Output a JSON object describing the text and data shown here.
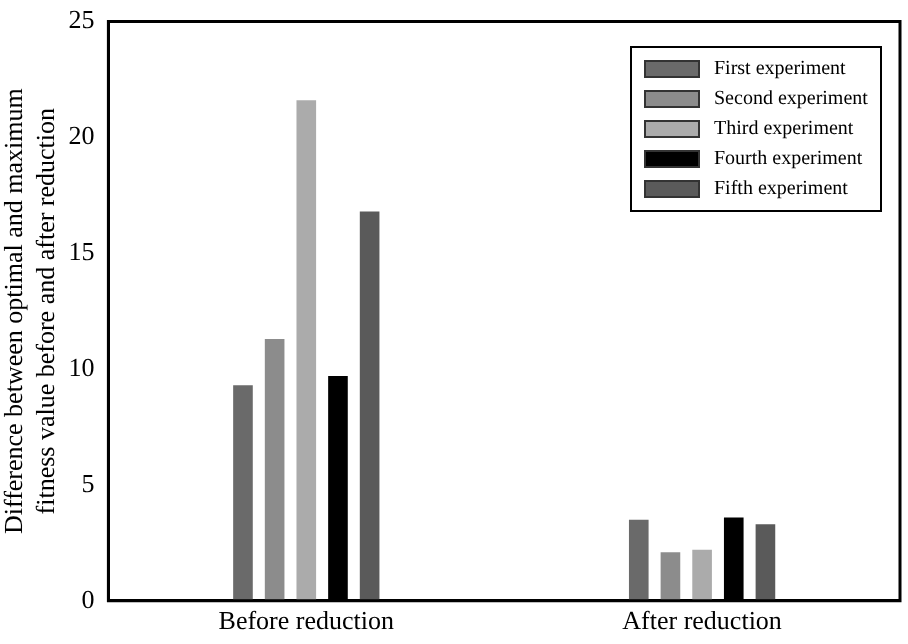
{
  "chart_data": {
    "type": "bar",
    "ylabel": "Difference between optimal and maximum\nfitness value before and after reduction",
    "categories": [
      "Before reduction",
      "After reduction"
    ],
    "series": [
      {
        "name": "First experiment",
        "color": "#6a6a6a",
        "values": [
          9.3,
          3.5
        ]
      },
      {
        "name": "Second experiment",
        "color": "#8c8c8c",
        "values": [
          11.3,
          2.1
        ]
      },
      {
        "name": "Third experiment",
        "color": "#ababab",
        "values": [
          21.6,
          2.2
        ]
      },
      {
        "name": "Fourth experiment",
        "color": "#000000",
        "values": [
          9.7,
          3.6
        ]
      },
      {
        "name": "Fifth experiment",
        "color": "#5a5a5a",
        "values": [
          16.8,
          3.3
        ]
      }
    ],
    "ylim": [
      0,
      25
    ],
    "yticks": [
      0,
      5,
      10,
      15,
      20,
      25
    ],
    "grid": false,
    "legend": "top right"
  }
}
